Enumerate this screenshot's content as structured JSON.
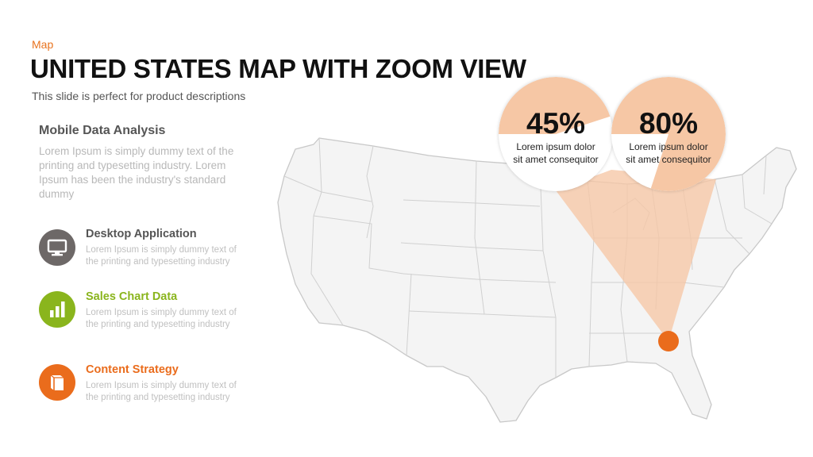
{
  "slide": {
    "eyebrow": "Map",
    "title": "UNITED STATES MAP WITH ZOOM VIEW",
    "subtitle": "This slide is perfect for product descriptions"
  },
  "section": {
    "heading": "Mobile  Data Analysis",
    "body": "Lorem Ipsum is simply dummy text of the printing and typesetting industry. Lorem Ipsum has been the industry's standard dummy"
  },
  "features": [
    {
      "title": "Desktop Application",
      "body": "Lorem Ipsum  is simply dummy  text of the printing and typesetting industry",
      "color": "#6d6867",
      "icon": "monitor-icon"
    },
    {
      "title": "Sales Chart Data",
      "body": "Lorem Ipsum  is simply dummy text of the printing and typesetting industry",
      "color": "#8ab51d",
      "icon": "bar-chart-icon"
    },
    {
      "title": "Content Strategy",
      "body": "Lorem Ipsum  is simply dummy text of the printing and typesetting industry",
      "color": "#ea6c1c",
      "icon": "book-icon"
    }
  ],
  "stats": [
    {
      "value": "45%",
      "percent": 45,
      "caption_line1": "Lorem ipsum dolor",
      "caption_line2": "sit amet consequitor"
    },
    {
      "value": "80%",
      "percent": 80,
      "caption_line1": "Lorem ipsum dolor",
      "caption_line2": "sit amet consequitor"
    }
  ],
  "colors": {
    "accent": "#ea6c1c",
    "highlight": "#f6c7a5",
    "map_fill": "#f4f4f4",
    "map_stroke": "#c8c8c8"
  }
}
